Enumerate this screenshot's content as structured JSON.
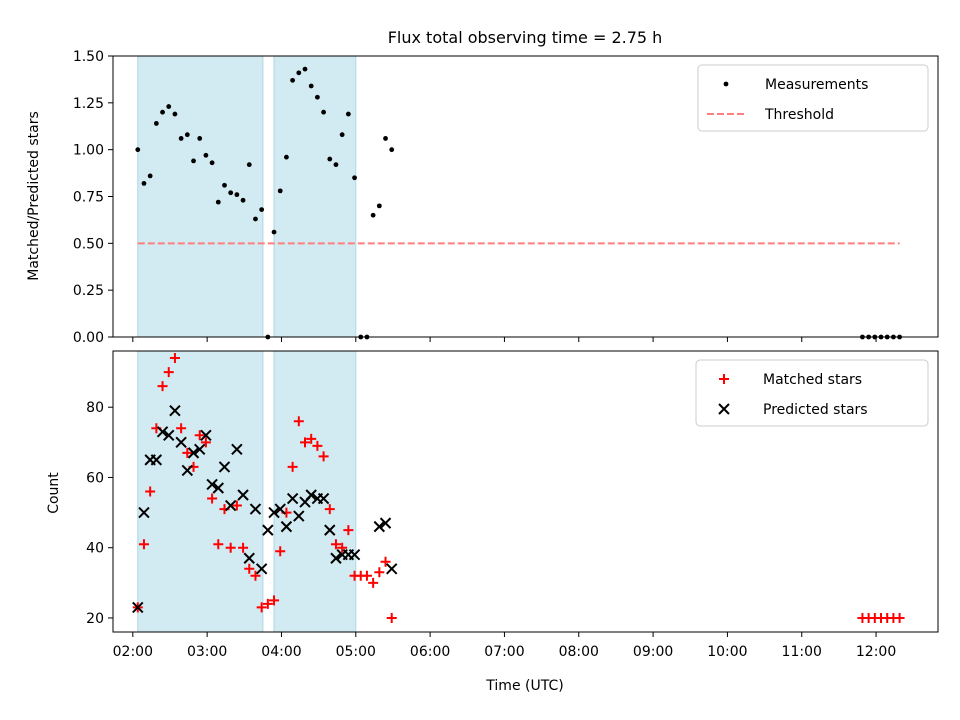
{
  "figure": {
    "title": "Flux total observing time = 2.75 h",
    "xlabel": "Time (UTC)"
  },
  "colors": {
    "shade": "#add8e6",
    "measurements": "#000000",
    "threshold": "#ff7f7f",
    "matched": "#ff0000",
    "predicted": "#000000"
  },
  "chart_data": [
    {
      "type": "scatter",
      "ylabel": "Matched/Predicted stars",
      "xlim": [
        "01:44",
        "12:50"
      ],
      "ylim": [
        0,
        1.5
      ],
      "yticks": [
        "0.00",
        "0.25",
        "0.50",
        "0.75",
        "1.00",
        "1.25",
        "1.50"
      ],
      "legend_placement": "upper right",
      "shaded_intervals": [
        [
          "02:04",
          "03:45"
        ],
        [
          "03:54",
          "05:00"
        ]
      ],
      "series": [
        {
          "name": "Measurements",
          "marker": "dot",
          "x": [
            "02:04",
            "02:09",
            "02:14",
            "02:19",
            "02:24",
            "02:29",
            "02:34",
            "02:39",
            "02:44",
            "02:49",
            "02:54",
            "02:59",
            "03:04",
            "03:09",
            "03:14",
            "03:19",
            "03:24",
            "03:29",
            "03:34",
            "03:39",
            "03:44",
            "03:49",
            "03:54",
            "03:59",
            "04:04",
            "04:09",
            "04:14",
            "04:19",
            "04:24",
            "04:29",
            "04:34",
            "04:39",
            "04:44",
            "04:49",
            "04:54",
            "04:59",
            "05:04",
            "05:09",
            "05:14",
            "05:19",
            "05:24",
            "05:29",
            "11:49",
            "11:54",
            "11:59",
            "12:04",
            "12:09",
            "12:14",
            "12:19"
          ],
          "y": [
            1.0,
            0.82,
            0.86,
            1.14,
            1.2,
            1.23,
            1.19,
            1.06,
            1.08,
            0.94,
            1.06,
            0.97,
            0.93,
            0.72,
            0.81,
            0.77,
            0.76,
            0.73,
            0.92,
            0.63,
            0.68,
            0.0,
            0.56,
            0.78,
            0.96,
            1.37,
            1.41,
            1.43,
            1.34,
            1.28,
            1.2,
            0.95,
            0.92,
            1.08,
            1.19,
            0.85,
            0.0,
            0.0,
            0.65,
            0.7,
            1.06,
            1.0,
            0.0,
            0.0,
            0.0,
            0.0,
            0.0,
            0.0,
            0.0
          ]
        },
        {
          "name": "Threshold",
          "line": "dashed",
          "x": [
            "02:04",
            "12:19"
          ],
          "y": [
            0.5,
            0.5
          ]
        }
      ]
    },
    {
      "type": "scatter",
      "ylabel": "Count",
      "xlim": [
        "01:44",
        "12:50"
      ],
      "ylim": [
        16,
        96
      ],
      "yticks": [
        "20",
        "40",
        "60",
        "80"
      ],
      "xticks": [
        "02:00",
        "03:00",
        "04:00",
        "05:00",
        "06:00",
        "07:00",
        "08:00",
        "09:00",
        "10:00",
        "11:00",
        "12:00"
      ],
      "legend_placement": "upper right",
      "shaded_intervals": [
        [
          "02:04",
          "03:45"
        ],
        [
          "03:54",
          "05:00"
        ]
      ],
      "series": [
        {
          "name": "Matched stars",
          "marker": "+",
          "x": [
            "02:04",
            "02:09",
            "02:14",
            "02:19",
            "02:24",
            "02:29",
            "02:34",
            "02:39",
            "02:44",
            "02:49",
            "02:54",
            "02:59",
            "03:04",
            "03:09",
            "03:14",
            "03:19",
            "03:24",
            "03:29",
            "03:34",
            "03:39",
            "03:44",
            "03:49",
            "03:54",
            "03:59",
            "04:04",
            "04:09",
            "04:14",
            "04:19",
            "04:24",
            "04:29",
            "04:34",
            "04:39",
            "04:44",
            "04:49",
            "04:54",
            "04:59",
            "05:04",
            "05:09",
            "05:14",
            "05:19",
            "05:24",
            "05:29",
            "11:49",
            "11:54",
            "11:59",
            "12:04",
            "12:09",
            "12:14",
            "12:19"
          ],
          "y": [
            23,
            41,
            56,
            74,
            86,
            90,
            94,
            74,
            67,
            63,
            72,
            70,
            54,
            41,
            51,
            40,
            52,
            40,
            34,
            32,
            23,
            24,
            25,
            39,
            50,
            63,
            76,
            70,
            71,
            69,
            66,
            51,
            41,
            40,
            45,
            32,
            32,
            32,
            30,
            33,
            36,
            20,
            20,
            20,
            20,
            20,
            20,
            20,
            20
          ]
        },
        {
          "name": "Predicted stars",
          "marker": "x",
          "x": [
            "02:04",
            "02:09",
            "02:14",
            "02:19",
            "02:24",
            "02:29",
            "02:34",
            "02:39",
            "02:44",
            "02:49",
            "02:54",
            "02:59",
            "03:04",
            "03:09",
            "03:14",
            "03:19",
            "03:24",
            "03:29",
            "03:34",
            "03:39",
            "03:44",
            "03:49",
            "03:54",
            "03:59",
            "04:04",
            "04:09",
            "04:14",
            "04:19",
            "04:24",
            "04:29",
            "04:34",
            "04:39",
            "04:44",
            "04:49",
            "04:54",
            "04:59",
            "05:19",
            "05:24",
            "05:29"
          ],
          "y": [
            23,
            50,
            65,
            65,
            73,
            72,
            79,
            70,
            62,
            67,
            68,
            72,
            58,
            57,
            63,
            52,
            68,
            55,
            37,
            51,
            34,
            45,
            50,
            51,
            46,
            54,
            49,
            53,
            55,
            54,
            54,
            45,
            37,
            38,
            38,
            38,
            46,
            47,
            34
          ]
        }
      ]
    }
  ]
}
